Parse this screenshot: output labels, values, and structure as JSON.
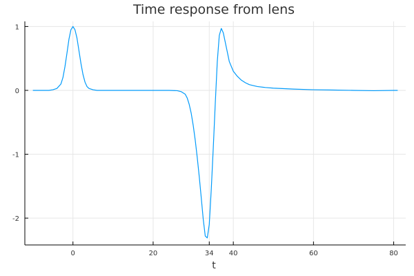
{
  "chart_data": {
    "type": "line",
    "title": "Time response from lens",
    "xlabel": "t",
    "ylabel": "",
    "xlim": [
      -12,
      83
    ],
    "ylim": [
      -2.42,
      1.08
    ],
    "xticks": [
      0,
      20,
      34,
      40,
      60,
      80
    ],
    "yticks": [
      -2,
      -1,
      0,
      1
    ],
    "grid": true,
    "legend": "none",
    "series": [
      {
        "color": "#009AFA",
        "x": [
          -10,
          -6,
          -5,
          -4,
          -3,
          -2.5,
          -2,
          -1.5,
          -1,
          -0.5,
          0,
          0.5,
          1,
          1.5,
          2,
          2.5,
          3,
          3.5,
          4,
          5,
          6,
          10,
          15,
          20,
          24,
          26,
          27,
          28,
          28.5,
          29,
          29.5,
          30,
          30.5,
          31,
          31.5,
          32,
          32.5,
          33,
          33.5,
          34,
          34.5,
          35,
          35.5,
          36,
          36.5,
          37,
          37.5,
          38,
          38.5,
          39,
          40,
          41,
          42,
          43,
          44,
          46,
          48,
          50,
          55,
          60,
          65,
          70,
          75,
          80,
          81
        ],
        "y": [
          0,
          0,
          0.01,
          0.03,
          0.1,
          0.2,
          0.37,
          0.58,
          0.8,
          0.95,
          1.0,
          0.95,
          0.82,
          0.62,
          0.42,
          0.25,
          0.13,
          0.06,
          0.03,
          0.01,
          0,
          0,
          0,
          0,
          0,
          -0.005,
          -0.02,
          -0.06,
          -0.12,
          -0.22,
          -0.36,
          -0.55,
          -0.78,
          -1.05,
          -1.35,
          -1.68,
          -2.02,
          -2.28,
          -2.31,
          -2.1,
          -1.55,
          -0.9,
          -0.2,
          0.45,
          0.86,
          0.97,
          0.9,
          0.75,
          0.6,
          0.45,
          0.3,
          0.22,
          0.16,
          0.12,
          0.09,
          0.06,
          0.045,
          0.035,
          0.02,
          0.01,
          0.005,
          0,
          -0.005,
          0,
          0
        ]
      }
    ]
  }
}
